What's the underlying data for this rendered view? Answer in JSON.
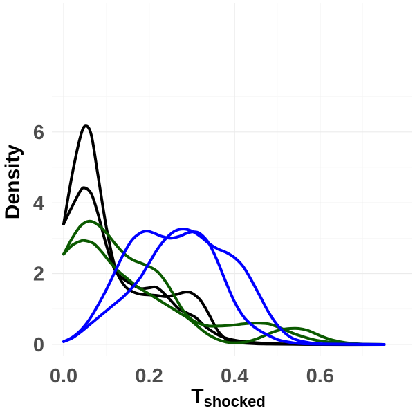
{
  "chart_data": {
    "type": "line",
    "title": "",
    "xlabel": "T",
    "xlabel_subscript": "shocked",
    "ylabel": "Density",
    "xlim": [
      0,
      0.75
    ],
    "ylim": [
      0,
      6.3
    ],
    "x_ticks": [
      0.0,
      0.2,
      0.4,
      0.6
    ],
    "x_tick_labels": [
      "0.0",
      "0.2",
      "0.4",
      "0.6"
    ],
    "y_ticks": [
      0,
      2,
      4,
      6
    ],
    "y_tick_labels": [
      "0",
      "2",
      "4",
      "6"
    ],
    "grid": true,
    "legend": "none",
    "colors": {
      "black": "#000000",
      "green": "#0b5a00",
      "blue": "#0000ff"
    },
    "series": [
      {
        "color": "#000000",
        "points": [
          [
            0.0,
            3.4
          ],
          [
            0.02,
            4.8
          ],
          [
            0.04,
            5.9
          ],
          [
            0.052,
            6.17
          ],
          [
            0.065,
            5.9
          ],
          [
            0.08,
            4.8
          ],
          [
            0.1,
            3.3
          ],
          [
            0.12,
            2.2
          ],
          [
            0.14,
            1.7
          ],
          [
            0.16,
            1.5
          ],
          [
            0.18,
            1.42
          ],
          [
            0.2,
            1.4
          ],
          [
            0.22,
            1.38
          ],
          [
            0.24,
            1.35
          ],
          [
            0.26,
            1.4
          ],
          [
            0.28,
            1.47
          ],
          [
            0.29,
            1.48
          ],
          [
            0.3,
            1.45
          ],
          [
            0.32,
            1.25
          ],
          [
            0.34,
            0.85
          ],
          [
            0.36,
            0.4
          ],
          [
            0.38,
            0.15
          ],
          [
            0.4,
            0.06
          ],
          [
            0.45,
            0.02
          ],
          [
            0.5,
            0.01
          ],
          [
            0.6,
            0.0
          ],
          [
            0.75,
            0.0
          ]
        ]
      },
      {
        "color": "#000000",
        "points": [
          [
            0.0,
            3.4
          ],
          [
            0.02,
            3.9
          ],
          [
            0.04,
            4.35
          ],
          [
            0.05,
            4.42
          ],
          [
            0.065,
            4.25
          ],
          [
            0.08,
            3.7
          ],
          [
            0.1,
            2.8
          ],
          [
            0.12,
            2.1
          ],
          [
            0.14,
            1.85
          ],
          [
            0.16,
            1.7
          ],
          [
            0.18,
            1.58
          ],
          [
            0.2,
            1.6
          ],
          [
            0.215,
            1.62
          ],
          [
            0.23,
            1.5
          ],
          [
            0.25,
            1.25
          ],
          [
            0.27,
            1.0
          ],
          [
            0.29,
            0.88
          ],
          [
            0.31,
            0.75
          ],
          [
            0.33,
            0.52
          ],
          [
            0.35,
            0.35
          ],
          [
            0.37,
            0.22
          ],
          [
            0.4,
            0.12
          ],
          [
            0.45,
            0.05
          ],
          [
            0.5,
            0.02
          ],
          [
            0.6,
            0.0
          ],
          [
            0.75,
            0.0
          ]
        ]
      },
      {
        "color": "#0b5a00",
        "points": [
          [
            0.0,
            2.55
          ],
          [
            0.02,
            3.0
          ],
          [
            0.04,
            3.35
          ],
          [
            0.06,
            3.48
          ],
          [
            0.08,
            3.38
          ],
          [
            0.1,
            3.15
          ],
          [
            0.12,
            2.85
          ],
          [
            0.14,
            2.58
          ],
          [
            0.16,
            2.4
          ],
          [
            0.18,
            2.3
          ],
          [
            0.2,
            2.2
          ],
          [
            0.22,
            2.05
          ],
          [
            0.24,
            1.75
          ],
          [
            0.26,
            1.35
          ],
          [
            0.28,
            0.95
          ],
          [
            0.3,
            0.7
          ],
          [
            0.32,
            0.58
          ],
          [
            0.34,
            0.52
          ],
          [
            0.36,
            0.52
          ],
          [
            0.38,
            0.53
          ],
          [
            0.4,
            0.55
          ],
          [
            0.42,
            0.58
          ],
          [
            0.44,
            0.6
          ],
          [
            0.46,
            0.6
          ],
          [
            0.48,
            0.58
          ],
          [
            0.5,
            0.5
          ],
          [
            0.52,
            0.4
          ],
          [
            0.54,
            0.3
          ],
          [
            0.56,
            0.22
          ],
          [
            0.58,
            0.15
          ],
          [
            0.6,
            0.1
          ],
          [
            0.65,
            0.03
          ],
          [
            0.7,
            0.01
          ],
          [
            0.75,
            0.0
          ]
        ]
      },
      {
        "color": "#0b5a00",
        "points": [
          [
            0.0,
            2.55
          ],
          [
            0.02,
            2.8
          ],
          [
            0.04,
            2.92
          ],
          [
            0.05,
            2.93
          ],
          [
            0.07,
            2.85
          ],
          [
            0.09,
            2.6
          ],
          [
            0.11,
            2.3
          ],
          [
            0.13,
            2.05
          ],
          [
            0.15,
            1.85
          ],
          [
            0.17,
            1.65
          ],
          [
            0.19,
            1.5
          ],
          [
            0.21,
            1.35
          ],
          [
            0.23,
            1.2
          ],
          [
            0.25,
            1.05
          ],
          [
            0.27,
            0.9
          ],
          [
            0.29,
            0.75
          ],
          [
            0.31,
            0.55
          ],
          [
            0.33,
            0.35
          ],
          [
            0.35,
            0.2
          ],
          [
            0.37,
            0.1
          ],
          [
            0.39,
            0.05
          ],
          [
            0.41,
            0.05
          ],
          [
            0.43,
            0.08
          ],
          [
            0.45,
            0.15
          ],
          [
            0.47,
            0.25
          ],
          [
            0.49,
            0.35
          ],
          [
            0.51,
            0.42
          ],
          [
            0.53,
            0.45
          ],
          [
            0.55,
            0.45
          ],
          [
            0.57,
            0.4
          ],
          [
            0.59,
            0.3
          ],
          [
            0.61,
            0.2
          ],
          [
            0.63,
            0.12
          ],
          [
            0.66,
            0.05
          ],
          [
            0.7,
            0.01
          ],
          [
            0.75,
            0.0
          ]
        ]
      },
      {
        "color": "#0000ff",
        "points": [
          [
            0.0,
            0.08
          ],
          [
            0.02,
            0.2
          ],
          [
            0.04,
            0.4
          ],
          [
            0.06,
            0.7
          ],
          [
            0.08,
            1.1
          ],
          [
            0.1,
            1.55
          ],
          [
            0.12,
            2.05
          ],
          [
            0.14,
            2.55
          ],
          [
            0.16,
            2.95
          ],
          [
            0.18,
            3.15
          ],
          [
            0.195,
            3.2
          ],
          [
            0.21,
            3.15
          ],
          [
            0.23,
            3.05
          ],
          [
            0.25,
            3.0
          ],
          [
            0.27,
            3.05
          ],
          [
            0.29,
            3.15
          ],
          [
            0.305,
            3.18
          ],
          [
            0.32,
            3.12
          ],
          [
            0.34,
            2.85
          ],
          [
            0.36,
            2.35
          ],
          [
            0.38,
            1.75
          ],
          [
            0.4,
            1.2
          ],
          [
            0.42,
            0.8
          ],
          [
            0.44,
            0.55
          ],
          [
            0.46,
            0.38
          ],
          [
            0.48,
            0.25
          ],
          [
            0.5,
            0.14
          ],
          [
            0.52,
            0.08
          ],
          [
            0.55,
            0.03
          ],
          [
            0.6,
            0.01
          ],
          [
            0.75,
            0.0
          ]
        ]
      },
      {
        "color": "#0000ff",
        "points": [
          [
            0.0,
            0.08
          ],
          [
            0.02,
            0.18
          ],
          [
            0.04,
            0.35
          ],
          [
            0.06,
            0.55
          ],
          [
            0.08,
            0.75
          ],
          [
            0.1,
            0.95
          ],
          [
            0.12,
            1.15
          ],
          [
            0.14,
            1.35
          ],
          [
            0.16,
            1.6
          ],
          [
            0.18,
            1.9
          ],
          [
            0.2,
            2.3
          ],
          [
            0.22,
            2.7
          ],
          [
            0.24,
            3.0
          ],
          [
            0.26,
            3.2
          ],
          [
            0.28,
            3.26
          ],
          [
            0.3,
            3.2
          ],
          [
            0.32,
            3.05
          ],
          [
            0.34,
            2.85
          ],
          [
            0.36,
            2.7
          ],
          [
            0.38,
            2.6
          ],
          [
            0.4,
            2.45
          ],
          [
            0.42,
            2.2
          ],
          [
            0.44,
            1.8
          ],
          [
            0.46,
            1.35
          ],
          [
            0.48,
            0.9
          ],
          [
            0.5,
            0.55
          ],
          [
            0.52,
            0.3
          ],
          [
            0.54,
            0.15
          ],
          [
            0.57,
            0.06
          ],
          [
            0.6,
            0.02
          ],
          [
            0.65,
            0.01
          ],
          [
            0.75,
            0.0
          ]
        ]
      }
    ]
  }
}
